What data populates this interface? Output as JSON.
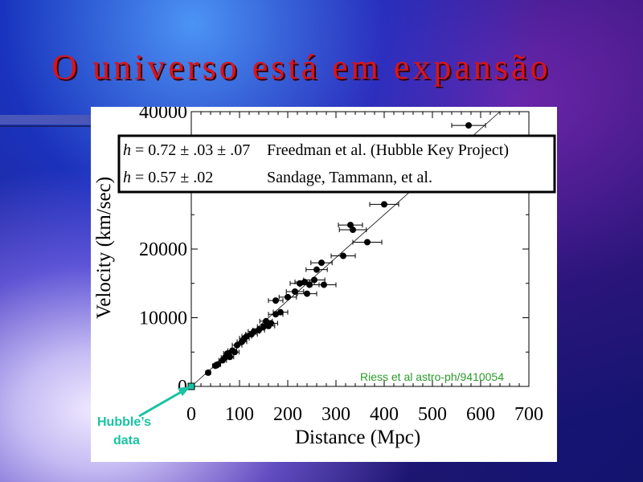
{
  "slide": {
    "title": "O universo está em expansão"
  },
  "colors": {
    "title": "#d8141a",
    "annotation": "#19c3a3",
    "source_note": "#2a9a2a"
  },
  "chart_data": {
    "type": "scatter",
    "title": "",
    "xlabel": "Distance (Mpc)",
    "ylabel": "Velocity (km/sec)",
    "xlim": [
      0,
      700
    ],
    "ylim": [
      0,
      40000
    ],
    "x_ticks": [
      "0",
      "100",
      "200",
      "300",
      "400",
      "500",
      "600",
      "700"
    ],
    "y_ticks": [
      "0",
      "10000",
      "20000",
      "40000"
    ],
    "y_tick_values": [
      0,
      10000,
      20000,
      40000
    ],
    "legend": [
      {
        "text": "Freedman et al. (Hubble Key Project)",
        "h": "0.72",
        "errors": [
          ".03",
          ".07"
        ]
      },
      {
        "text": "Sandage, Tammann, et al.",
        "h": "0.57",
        "errors": [
          ".02"
        ]
      }
    ],
    "h_symbol": "h",
    "eq_sign": " = ",
    "pm_sign": " ± ",
    "source_note": "Riess et al astro-ph/9410054",
    "annotation": "Hubble’s data",
    "fit_line": [
      [
        0,
        0
      ],
      [
        640,
        45000
      ]
    ],
    "hubble_data_point": [
      0,
      0
    ],
    "points": [
      {
        "x": 35,
        "y": 2000,
        "xerr": 5
      },
      {
        "x": 50,
        "y": 3000,
        "xerr": 6
      },
      {
        "x": 55,
        "y": 3200,
        "xerr": 6
      },
      {
        "x": 65,
        "y": 3800,
        "xerr": 8
      },
      {
        "x": 70,
        "y": 4200,
        "xerr": 8
      },
      {
        "x": 75,
        "y": 4800,
        "xerr": 8
      },
      {
        "x": 80,
        "y": 4300,
        "xerr": 8
      },
      {
        "x": 85,
        "y": 5200,
        "xerr": 9
      },
      {
        "x": 90,
        "y": 5000,
        "xerr": 9
      },
      {
        "x": 95,
        "y": 6000,
        "xerr": 10
      },
      {
        "x": 105,
        "y": 6500,
        "xerr": 10
      },
      {
        "x": 110,
        "y": 7000,
        "xerr": 10
      },
      {
        "x": 115,
        "y": 7300,
        "xerr": 10
      },
      {
        "x": 125,
        "y": 7600,
        "xerr": 12
      },
      {
        "x": 130,
        "y": 8000,
        "xerr": 12
      },
      {
        "x": 140,
        "y": 8200,
        "xerr": 12
      },
      {
        "x": 150,
        "y": 8700,
        "xerr": 13
      },
      {
        "x": 155,
        "y": 9500,
        "xerr": 13
      },
      {
        "x": 160,
        "y": 8800,
        "xerr": 13
      },
      {
        "x": 165,
        "y": 9200,
        "xerr": 14
      },
      {
        "x": 175,
        "y": 10500,
        "xerr": 15
      },
      {
        "x": 185,
        "y": 10800,
        "xerr": 15
      },
      {
        "x": 175,
        "y": 12500,
        "xerr": 15
      },
      {
        "x": 200,
        "y": 13000,
        "xerr": 18
      },
      {
        "x": 215,
        "y": 13800,
        "xerr": 18
      },
      {
        "x": 225,
        "y": 15000,
        "xerr": 20
      },
      {
        "x": 235,
        "y": 15200,
        "xerr": 20
      },
      {
        "x": 240,
        "y": 13500,
        "xerr": 20
      },
      {
        "x": 245,
        "y": 14800,
        "xerr": 20
      },
      {
        "x": 255,
        "y": 15500,
        "xerr": 22
      },
      {
        "x": 260,
        "y": 17000,
        "xerr": 22
      },
      {
        "x": 270,
        "y": 18000,
        "xerr": 22
      },
      {
        "x": 275,
        "y": 14800,
        "xerr": 25
      },
      {
        "x": 315,
        "y": 19000,
        "xerr": 25
      },
      {
        "x": 330,
        "y": 23500,
        "xerr": 25
      },
      {
        "x": 335,
        "y": 22800,
        "xerr": 28
      },
      {
        "x": 365,
        "y": 21000,
        "xerr": 30
      },
      {
        "x": 400,
        "y": 26500,
        "xerr": 30
      },
      {
        "x": 575,
        "y": 38000,
        "xerr": 35
      }
    ]
  }
}
